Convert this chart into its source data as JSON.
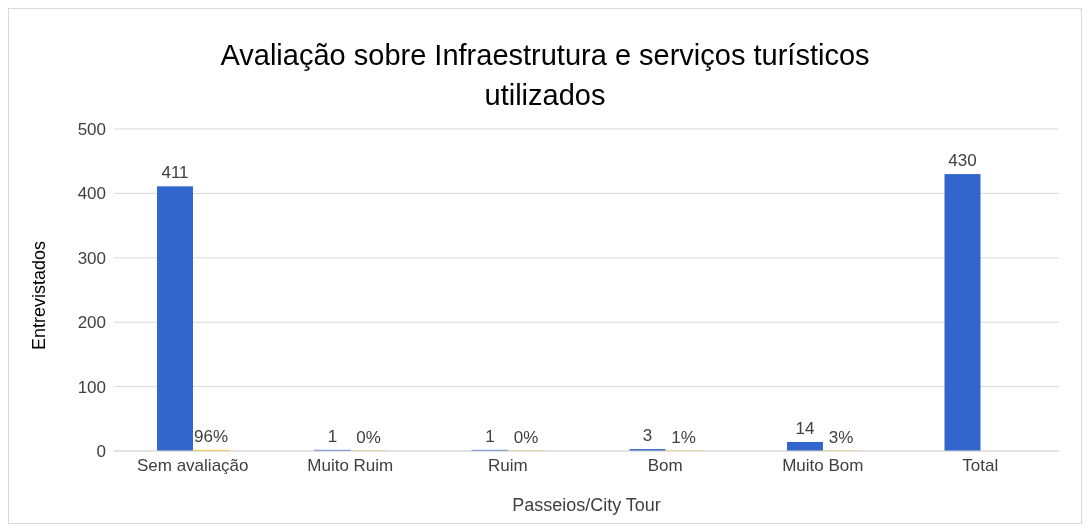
{
  "chart_data": {
    "type": "bar",
    "title": "Avaliação sobre Infraestrutura e serviços turísticos utilizados",
    "xlabel": "Passeios/City Tour",
    "ylabel": "Entrevistados",
    "categories": [
      "Sem avaliação",
      "Muito Ruim",
      "Ruim",
      "Bom",
      "Muito Bom",
      "Total"
    ],
    "series": [
      {
        "color": "#3366cc",
        "values": [
          411,
          1,
          1,
          3,
          14,
          430
        ],
        "value_labels": [
          "411",
          "1",
          "1",
          "3",
          "14",
          "430"
        ]
      },
      {
        "color": "#ffc000",
        "values": [
          0.96,
          0.002,
          0.002,
          0.01,
          0.03,
          null
        ],
        "value_labels": [
          "96%",
          "0%",
          "0%",
          "1%",
          "3%",
          null
        ]
      }
    ],
    "ylim": [
      0,
      500
    ],
    "yticks": [
      0,
      100,
      200,
      300,
      400,
      500
    ],
    "grid": "y",
    "legend": false
  }
}
